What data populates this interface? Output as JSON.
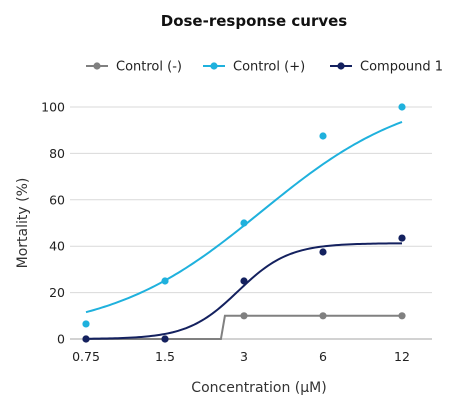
{
  "chart_data": {
    "type": "line",
    "title": "Dose-response curves",
    "xlabel": "Concentration (μM)",
    "ylabel": "Mortality (%)",
    "x_scale": "log2",
    "x_categories": [
      "0.75",
      "1.5",
      "3",
      "6",
      "12"
    ],
    "x": [
      0.75,
      1.5,
      3,
      6,
      12
    ],
    "ylim": [
      0,
      100
    ],
    "y_ticks": [
      "0",
      "20",
      "40",
      "60",
      "80",
      "100"
    ],
    "grid": true,
    "legend_position": "top",
    "series": [
      {
        "name": "Control (-)",
        "color": "#808080",
        "points": [
          [
            0.75,
            0
          ],
          [
            1.5,
            0
          ],
          [
            3,
            10
          ],
          [
            6,
            10
          ],
          [
            12,
            10
          ]
        ],
        "fit": {
          "kind": "step",
          "baseline": 0,
          "plateau": 10,
          "step_at": 2.45
        }
      },
      {
        "name": "Control (+)",
        "color": "#1fb1dd",
        "points": [
          [
            0.75,
            6.5
          ],
          [
            1.5,
            25
          ],
          [
            3,
            50
          ],
          [
            6,
            87.5
          ],
          [
            12,
            100
          ]
        ],
        "fit": {
          "kind": "hill",
          "bottom": 2,
          "top": 108,
          "ec50": 3.5,
          "hill": 1.5
        }
      },
      {
        "name": "Compound 1",
        "color": "#14215f",
        "points": [
          [
            0.75,
            0
          ],
          [
            1.5,
            0
          ],
          [
            3,
            25
          ],
          [
            6,
            37.5
          ],
          [
            12,
            43.5
          ]
        ],
        "fit": {
          "kind": "hill",
          "bottom": 0,
          "top": 41.3,
          "ec50": 2.85,
          "hill": 4.5
        }
      }
    ]
  }
}
